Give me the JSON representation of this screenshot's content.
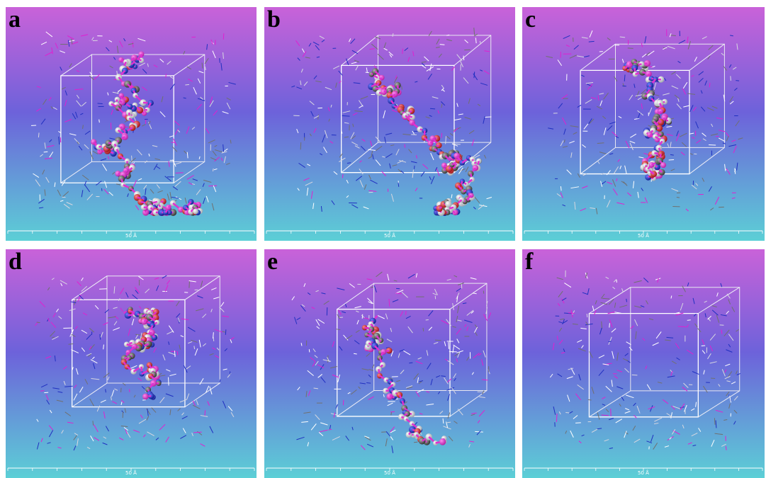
{
  "panels": [
    {
      "label": "a",
      "scale": "50 Å"
    },
    {
      "label": "b",
      "scale": "50 Å"
    },
    {
      "label": "c",
      "scale": "50 Å"
    },
    {
      "label": "d",
      "scale": "50 Å"
    },
    {
      "label": "e",
      "scale": "50 Å"
    },
    {
      "label": "f",
      "scale": "50 Å"
    }
  ]
}
